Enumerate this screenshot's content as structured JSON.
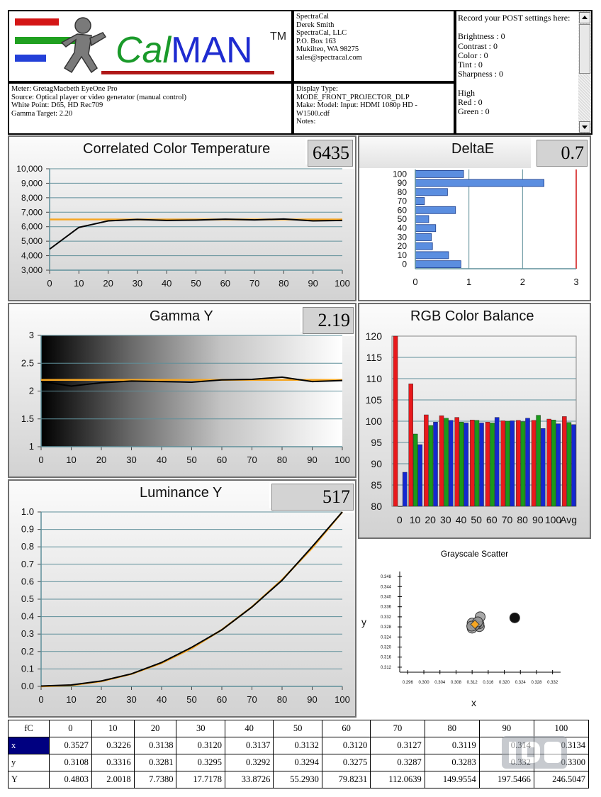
{
  "header": {
    "logo_text_cal": "Cal",
    "logo_text_man": "MAN",
    "logo_tm": "TM",
    "meter_info": "Meter: GretagMacbeth EyeOne Pro\nSource: Optical player or video generator (manual control)\nWhite Point: D65, HD Rec709\nGamma Target: 2.20",
    "contact_info": "SpectraCal\nDerek Smith\nSpectraCal, LLC\nP.O. Box 163\nMukilteo, WA 98275\nsales@spectracal.com",
    "display_info": "Display Type:\nMODE_FRONT_PROJECTOR_DLP\nMake: Model: Input: HDMI 1080p HD    -\n W1500.cdf\nNotes:",
    "post_settings": "Record your POST settings here:\n\nBrightness : 0\nContrast    : 0\nColor         : 0\nTint            : 0\nSharpness : 0\n\nHigh\nRed    : 0\nGreen : 0"
  },
  "cct": {
    "title": "Correlated Color Temperature",
    "value": "6435",
    "yticks": [
      "10,000",
      "9,000",
      "8,000",
      "7,000",
      "6,000",
      "5,000",
      "4,000",
      "3,000"
    ],
    "xticks": [
      "0",
      "10",
      "20",
      "30",
      "40",
      "50",
      "60",
      "70",
      "80",
      "90",
      "100"
    ]
  },
  "deltae": {
    "title": "DeltaE",
    "value": "0.7",
    "yticks": [
      "100",
      "90",
      "80",
      "70",
      "60",
      "50",
      "40",
      "30",
      "20",
      "10",
      "0"
    ],
    "xticks": [
      "0",
      "1",
      "2",
      "3"
    ]
  },
  "gamma": {
    "title": "Gamma Y",
    "value": "2.19",
    "yticks": [
      "3",
      "2.5",
      "2",
      "1.5",
      "1"
    ],
    "xticks": [
      "0",
      "10",
      "20",
      "30",
      "40",
      "50",
      "60",
      "70",
      "80",
      "90",
      "100"
    ]
  },
  "rgb": {
    "title": "RGB Color Balance",
    "yticks": [
      "120",
      "115",
      "110",
      "105",
      "100",
      "95",
      "90",
      "85",
      "80"
    ],
    "xticks": [
      "0",
      "10",
      "20",
      "30",
      "40",
      "50",
      "60",
      "70",
      "80",
      "90",
      "100",
      "Avg"
    ]
  },
  "lum": {
    "title": "Luminance Y",
    "value": "517",
    "yticks": [
      "1.0",
      "0.9",
      "0.8",
      "0.7",
      "0.6",
      "0.5",
      "0.4",
      "0.3",
      "0.2",
      "0.1",
      "0.0"
    ],
    "xticks": [
      "0",
      "10",
      "20",
      "30",
      "40",
      "50",
      "60",
      "70",
      "80",
      "90",
      "100"
    ]
  },
  "scatter": {
    "title": "Grayscale Scatter",
    "xlabel": "x",
    "ylabel": "y",
    "yticks": [
      "0.348",
      "0.344",
      "0.340",
      "0.336",
      "0.332",
      "0.328",
      "0.324",
      "0.320",
      "0.316",
      "0.312"
    ],
    "xticks": [
      "0.296",
      "0.300",
      "0.304",
      "0.308",
      "0.312",
      "0.316",
      "0.320",
      "0.324",
      "0.328",
      "0.332"
    ]
  },
  "table": {
    "corner": "fC",
    "columns": [
      "0",
      "10",
      "20",
      "30",
      "40",
      "50",
      "60",
      "70",
      "80",
      "90",
      "100"
    ],
    "rows": [
      {
        "label": "x",
        "values": [
          "0.3527",
          "0.3226",
          "0.3138",
          "0.3120",
          "0.3137",
          "0.3132",
          "0.3120",
          "0.3127",
          "0.3119",
          "0.314",
          "0.3134"
        ]
      },
      {
        "label": "y",
        "values": [
          "0.3108",
          "0.3316",
          "0.3281",
          "0.3295",
          "0.3292",
          "0.3294",
          "0.3275",
          "0.3287",
          "0.3283",
          "0.332",
          "0.3300"
        ]
      },
      {
        "label": "Y",
        "values": [
          "0.4803",
          "2.0018",
          "7.7380",
          "17.7178",
          "33.8726",
          "55.2930",
          "79.8231",
          "112.0639",
          "149.9554",
          "197.5466",
          "246.5047"
        ]
      }
    ]
  },
  "colors": {
    "target": "#f5a623",
    "measured": "#000000",
    "grid": "#5f8f9a",
    "red": "#e8191c",
    "green": "#1a9a1a",
    "blue": "#1428d0",
    "deltae_bar": "#5b8ee0"
  },
  "chart_data": [
    {
      "type": "line",
      "title": "Correlated Color Temperature",
      "x": [
        0,
        10,
        20,
        30,
        40,
        50,
        60,
        70,
        80,
        90,
        100
      ],
      "series": [
        {
          "values": [
            4450,
            5950,
            6400,
            6500,
            6430,
            6460,
            6520,
            6470,
            6530,
            6400,
            6435
          ]
        },
        {
          "values": [
            6500,
            6500,
            6500,
            6500,
            6500,
            6500,
            6500,
            6500,
            6500,
            6500,
            6500
          ]
        }
      ],
      "xlim": [
        0,
        100
      ],
      "ylim": [
        3000,
        10000
      ]
    },
    {
      "type": "bar",
      "title": "DeltaE",
      "categories": [
        "100",
        "90",
        "80",
        "70",
        "60",
        "50",
        "40",
        "30",
        "20",
        "10",
        "0"
      ],
      "values": [
        0.9,
        2.4,
        0.6,
        0.17,
        0.75,
        0.25,
        0.38,
        0.3,
        0.32,
        0.62,
        0.85
      ],
      "xlim": [
        0,
        3
      ]
    },
    {
      "type": "line",
      "title": "Gamma Y",
      "x": [
        0,
        10,
        20,
        30,
        40,
        50,
        60,
        70,
        80,
        90,
        100
      ],
      "series": [
        {
          "values": [
            2.17,
            2.09,
            2.15,
            2.18,
            2.17,
            2.16,
            2.2,
            2.21,
            2.25,
            2.17,
            2.19
          ]
        },
        {
          "values": [
            2.2,
            2.2,
            2.2,
            2.2,
            2.2,
            2.2,
            2.2,
            2.2,
            2.2,
            2.2,
            2.2
          ]
        }
      ],
      "xlim": [
        0,
        100
      ],
      "ylim": [
        1,
        3
      ]
    },
    {
      "type": "bar",
      "title": "RGB Color Balance",
      "categories": [
        "0",
        "10",
        "20",
        "30",
        "40",
        "50",
        "60",
        "70",
        "80",
        "90",
        "100",
        "Avg"
      ],
      "series": [
        {
          "values": [
            120,
            108.8,
            101.5,
            101.3,
            100.9,
            100.3,
            99.8,
            100.1,
            100.2,
            100.2,
            100.5,
            101.1
          ]
        },
        {
          "values": [
            80,
            97,
            99,
            100.7,
            99.8,
            100.2,
            99.6,
            100,
            99.9,
            101.4,
            100.3,
            99.7
          ]
        },
        {
          "values": [
            88,
            94.5,
            99.8,
            100.2,
            99.6,
            99.6,
            100.9,
            100.1,
            100.7,
            98.3,
            99.4,
            99.2
          ]
        }
      ],
      "ylim": [
        80,
        120
      ]
    },
    {
      "type": "line",
      "title": "Luminance Y",
      "x": [
        0,
        10,
        20,
        30,
        40,
        50,
        60,
        70,
        80,
        90,
        100
      ],
      "series": [
        {
          "values": [
            0.002,
            0.008,
            0.031,
            0.072,
            0.137,
            0.224,
            0.324,
            0.455,
            0.608,
            0.801,
            1.0
          ]
        },
        {
          "values": [
            0.0,
            0.006,
            0.029,
            0.071,
            0.133,
            0.218,
            0.325,
            0.456,
            0.612,
            0.793,
            1.0
          ]
        }
      ],
      "xlim": [
        0,
        100
      ],
      "ylim": [
        0,
        1
      ]
    },
    {
      "type": "scatter",
      "title": "Grayscale Scatter",
      "xlabel": "x",
      "ylabel": "y",
      "points": [
        {
          "x": 0.3138,
          "y": 0.3281
        },
        {
          "x": 0.312,
          "y": 0.3295
        },
        {
          "x": 0.3137,
          "y": 0.3292
        },
        {
          "x": 0.3132,
          "y": 0.3294
        },
        {
          "x": 0.312,
          "y": 0.3275
        },
        {
          "x": 0.3127,
          "y": 0.3287
        },
        {
          "x": 0.3119,
          "y": 0.3283
        },
        {
          "x": 0.314,
          "y": 0.332
        },
        {
          "x": 0.3134,
          "y": 0.33
        },
        {
          "x": 0.3226,
          "y": 0.3316
        }
      ],
      "target": {
        "x": 0.3127,
        "y": 0.329
      },
      "xlim": [
        0.294,
        0.334
      ],
      "ylim": [
        0.31,
        0.35
      ]
    }
  ]
}
